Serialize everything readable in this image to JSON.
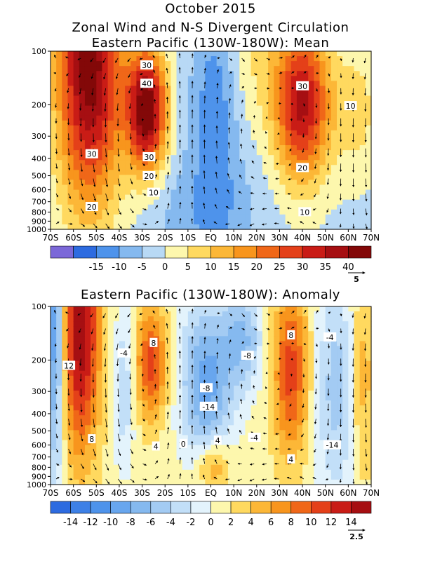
{
  "figure": {
    "title_line1": "October 2015",
    "title_line2": "Zonal Wind and N-S Divergent Circulation",
    "title_line3": "Eastern Pacific (130W-180W): Mean",
    "title_lower": "Eastern Pacific (130W-180W): Anomaly"
  },
  "chart_data": [
    {
      "type": "heatmap",
      "title": "Eastern Pacific (130W-180W): Mean",
      "x_tick_labels": [
        "70S",
        "60S",
        "50S",
        "40S",
        "30S",
        "20S",
        "10S",
        "EQ",
        "10N",
        "20N",
        "30N",
        "40N",
        "50N",
        "60N",
        "70N"
      ],
      "x_values": [
        -70,
        -60,
        -50,
        -40,
        -30,
        -20,
        -10,
        0,
        10,
        20,
        30,
        40,
        50,
        60,
        70
      ],
      "xlim": [
        -70,
        70
      ],
      "y_tick_labels": [
        "100",
        "200",
        "300",
        "400",
        "500",
        "600",
        "700",
        "800",
        "900",
        "1000"
      ],
      "y_values": [
        100,
        200,
        300,
        400,
        500,
        600,
        700,
        800,
        900,
        1000
      ],
      "ylim": [
        1000,
        100
      ],
      "y_scale": "log",
      "grid": false,
      "contour_labels": [
        {
          "lat": -28,
          "p": 120,
          "value": 30
        },
        {
          "lat": -28,
          "p": 152,
          "value": 40
        },
        {
          "lat": -52,
          "p": 378,
          "value": 30
        },
        {
          "lat": -27,
          "p": 393,
          "value": 30
        },
        {
          "lat": -27,
          "p": 502,
          "value": 20
        },
        {
          "lat": -25,
          "p": 622,
          "value": 10
        },
        {
          "lat": -52,
          "p": 748,
          "value": 20
        },
        {
          "lat": 40,
          "p": 157,
          "value": 30
        },
        {
          "lat": 40,
          "p": 452,
          "value": 20
        },
        {
          "lat": 61,
          "p": 203,
          "value": 10
        },
        {
          "lat": 41,
          "p": 800,
          "value": 10
        }
      ],
      "colorbar": {
        "tick_labels": [
          "-15",
          "-10",
          "-5",
          "0",
          "5",
          "10",
          "15",
          "20",
          "25",
          "30",
          "35",
          "40"
        ],
        "colors": [
          "#7b68d8",
          "#2d6be0",
          "#4e93eb",
          "#85b9ef",
          "#b8d9f5",
          "#fdf7ad",
          "#ffd95f",
          "#fcb737",
          "#f8951d",
          "#f06718",
          "#e44019",
          "#c91c16",
          "#a60f12",
          "#830808"
        ]
      },
      "vector_reference": "5"
    },
    {
      "type": "heatmap",
      "title": "Eastern Pacific (130W-180W): Anomaly",
      "x_tick_labels": [
        "70S",
        "60S",
        "50S",
        "40S",
        "30S",
        "20S",
        "10S",
        "EQ",
        "10N",
        "20N",
        "30N",
        "40N",
        "50N",
        "60N",
        "70N"
      ],
      "x_values": [
        -70,
        -60,
        -50,
        -40,
        -30,
        -20,
        -10,
        0,
        10,
        20,
        30,
        40,
        50,
        60,
        70
      ],
      "xlim": [
        -70,
        70
      ],
      "y_tick_labels": [
        "100",
        "200",
        "300",
        "400",
        "500",
        "600",
        "700",
        "800",
        "900",
        "1000"
      ],
      "y_values": [
        100,
        200,
        300,
        400,
        500,
        600,
        700,
        800,
        900,
        1000
      ],
      "ylim": [
        1000,
        100
      ],
      "y_scale": "log",
      "grid": false,
      "contour_labels": [
        {
          "lat": -25,
          "p": 160,
          "value": 8
        },
        {
          "lat": -38,
          "p": 183,
          "value": -4
        },
        {
          "lat": -62,
          "p": 215,
          "value": 12
        },
        {
          "lat": 16,
          "p": 189,
          "value": -8
        },
        {
          "lat": -2,
          "p": 287,
          "value": -8
        },
        {
          "lat": -1,
          "p": 365,
          "value": -14
        },
        {
          "lat": 35,
          "p": 145,
          "value": 8
        },
        {
          "lat": 52,
          "p": 149,
          "value": -4
        },
        {
          "lat": -52,
          "p": 555,
          "value": 8
        },
        {
          "lat": -24,
          "p": 610,
          "value": 4
        },
        {
          "lat": -12,
          "p": 590,
          "value": 0
        },
        {
          "lat": 3,
          "p": 565,
          "value": 4
        },
        {
          "lat": 19,
          "p": 545,
          "value": -4
        },
        {
          "lat": 53,
          "p": 600,
          "value": -14
        },
        {
          "lat": 35,
          "p": 720,
          "value": 4
        }
      ],
      "colorbar": {
        "tick_labels": [
          "-14",
          "-12",
          "-10",
          "-8",
          "-6",
          "-4",
          "-2",
          "0",
          "2",
          "4",
          "6",
          "8",
          "10",
          "12",
          "14"
        ],
        "colors": [
          "#2d6be0",
          "#3d80e6",
          "#4e93eb",
          "#68a6ee",
          "#85b9ef",
          "#a3cbf3",
          "#c2dff8",
          "#e3f3fc",
          "#fdf7ad",
          "#ffd95f",
          "#fcb737",
          "#f8951d",
          "#f06718",
          "#e44019",
          "#c91c16",
          "#a60f12"
        ]
      },
      "vector_reference": "2.5"
    }
  ]
}
